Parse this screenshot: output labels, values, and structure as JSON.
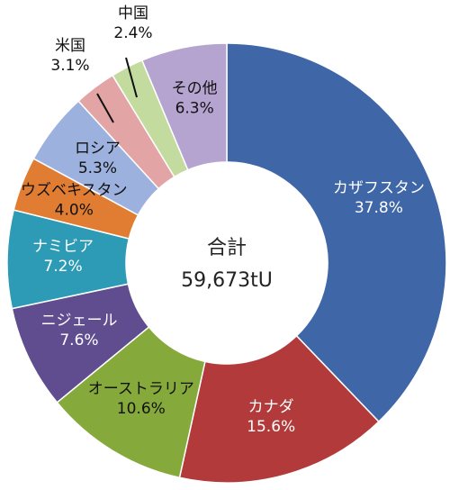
{
  "chart_data": {
    "type": "pie",
    "variant": "donut",
    "title": "",
    "center_label": "合計",
    "center_value": "59,673tU",
    "slices": [
      {
        "name": "カザフスタン",
        "value": 37.8,
        "label": "37.8%",
        "color": "#3f67a8",
        "text_color": "#ffffff"
      },
      {
        "name": "カナダ",
        "value": 15.6,
        "label": "15.6%",
        "color": "#b23a3a",
        "text_color": "#ffffff"
      },
      {
        "name": "オーストラリア",
        "value": 10.6,
        "label": "10.6%",
        "color": "#86a93b",
        "text_color": "#111111"
      },
      {
        "name": "ニジェール",
        "value": 7.6,
        "label": "7.6%",
        "color": "#5f4d8f",
        "text_color": "#ffffff"
      },
      {
        "name": "ナミビア",
        "value": 7.2,
        "label": "7.2%",
        "color": "#2d9bb6",
        "text_color": "#ffffff"
      },
      {
        "name": "ウズベキスタン",
        "value": 4.0,
        "label": "4.0%",
        "color": "#e07d33",
        "text_color": "#111111"
      },
      {
        "name": "ロシア",
        "value": 5.3,
        "label": "5.3%",
        "color": "#9cb1de",
        "text_color": "#111111"
      },
      {
        "name": "米国",
        "value": 3.1,
        "label": "3.1%",
        "color": "#e2a4a4",
        "text_color": "#111111"
      },
      {
        "name": "中国",
        "value": 2.4,
        "label": "2.4%",
        "color": "#c4dba0",
        "text_color": "#111111"
      },
      {
        "name": "その他",
        "value": 6.3,
        "label": "6.3%",
        "color": "#b5a4cf",
        "text_color": "#111111"
      }
    ]
  }
}
